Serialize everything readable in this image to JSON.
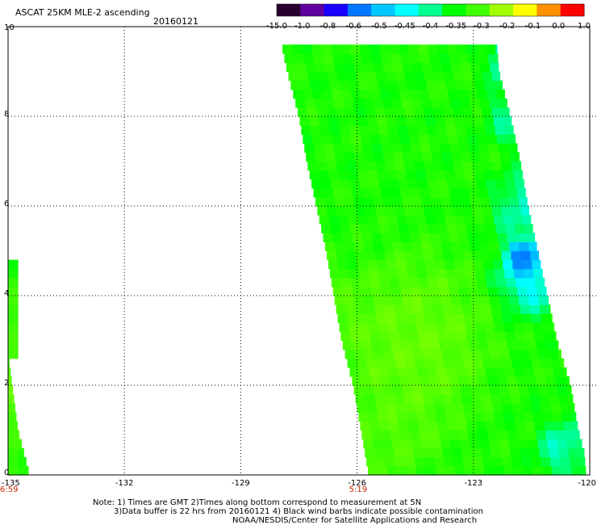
{
  "header": {
    "title": "ASCAT 25KM MLE-2 ascending",
    "date": "20160121"
  },
  "colorbar": {
    "labels": [
      "-15.0",
      "-1.0",
      "-0.8",
      "-0.6",
      "-0.5",
      "-0.45",
      "-0.4",
      "-0.35",
      "-0.3",
      "-0.2",
      "-0.1",
      "0.0",
      "1.0"
    ],
    "colors": [
      "#2a0030",
      "#6000a0",
      "#1800ff",
      "#0078ff",
      "#00c8ff",
      "#00ffff",
      "#00ff90",
      "#00ff00",
      "#40ff00",
      "#a0ff00",
      "#ffff00",
      "#ff9000",
      "#ff0000"
    ]
  },
  "footer": {
    "note1": "Note: 1) Times are GMT 2)Times along bottom correspond to measurement at 5N",
    "note2": "3)Data buffer is 22 hrs from 20160121 4) Black wind barbs indicate possible contamination",
    "credit": "NOAA/NESDIS/Center for Satellite Applications and Research"
  },
  "chart_data": {
    "type": "heatmap",
    "xlim": [
      -135,
      -120
    ],
    "ylim": [
      0,
      10
    ],
    "x_ticks": [
      -135,
      -132,
      -129,
      -126,
      -123,
      -120
    ],
    "y_ticks": [
      0,
      2,
      4,
      6,
      8,
      10
    ],
    "grid": true,
    "time_labels": [
      {
        "x": -135,
        "text": "6:59"
      },
      {
        "x": -126,
        "text": "5:19"
      }
    ],
    "color_levels": [
      -15.0,
      -1.0,
      -0.8,
      -0.6,
      -0.5,
      -0.45,
      -0.4,
      -0.35,
      -0.3,
      -0.2,
      -0.1,
      0.0,
      1.0
    ],
    "swaths": [
      {
        "name": "swath-west",
        "rows": [
          [
            0.0,
            -135.0,
            -134.45
          ],
          [
            0.5,
            -135.0,
            -134.6
          ],
          [
            1.0,
            -135.0,
            -134.75
          ],
          [
            2.0,
            -135.0,
            -134.9
          ],
          [
            3.0,
            -135.0,
            -135.05
          ],
          [
            4.0,
            -135.0,
            -135.2
          ],
          [
            4.75,
            -135.0,
            -135.2
          ]
        ]
      },
      {
        "name": "swath-east",
        "rows": [
          [
            0.0,
            -125.7,
            -120.1
          ],
          [
            0.5,
            -125.8,
            -120.15
          ],
          [
            1.0,
            -125.9,
            -120.3
          ],
          [
            2.0,
            -126.1,
            -120.5
          ],
          [
            3.0,
            -126.4,
            -120.85
          ],
          [
            4.0,
            -126.6,
            -121.1
          ],
          [
            5.0,
            -126.8,
            -121.35
          ],
          [
            6.0,
            -127.05,
            -121.6
          ],
          [
            7.0,
            -127.3,
            -121.8
          ],
          [
            8.0,
            -127.5,
            -122.05
          ],
          [
            9.0,
            -127.8,
            -122.35
          ],
          [
            9.6,
            -127.95,
            -122.4
          ]
        ]
      }
    ],
    "field": {
      "base": -0.33,
      "features": [
        {
          "x": -121.7,
          "y": 4.85,
          "r": 0.35,
          "value": -0.75
        },
        {
          "x": -121.5,
          "y": 4.5,
          "r": 0.8,
          "value": -0.5
        },
        {
          "x": -121.7,
          "y": 6.0,
          "r": 0.7,
          "value": -0.44
        },
        {
          "x": -122.1,
          "y": 9.2,
          "r": 0.45,
          "value": -0.5
        },
        {
          "x": -122.0,
          "y": 8.0,
          "r": 0.6,
          "value": -0.42
        },
        {
          "x": -120.7,
          "y": 0.6,
          "r": 0.6,
          "value": -0.44
        },
        {
          "x": -124.5,
          "y": 3.0,
          "r": 1.7,
          "value": -0.24
        },
        {
          "x": -125.0,
          "y": 1.2,
          "r": 1.2,
          "value": -0.27
        },
        {
          "x": -126.5,
          "y": 3.3,
          "r": 1.0,
          "value": -0.27
        },
        {
          "x": -134.7,
          "y": 2.0,
          "r": 1.6,
          "value": -0.26
        }
      ]
    }
  }
}
